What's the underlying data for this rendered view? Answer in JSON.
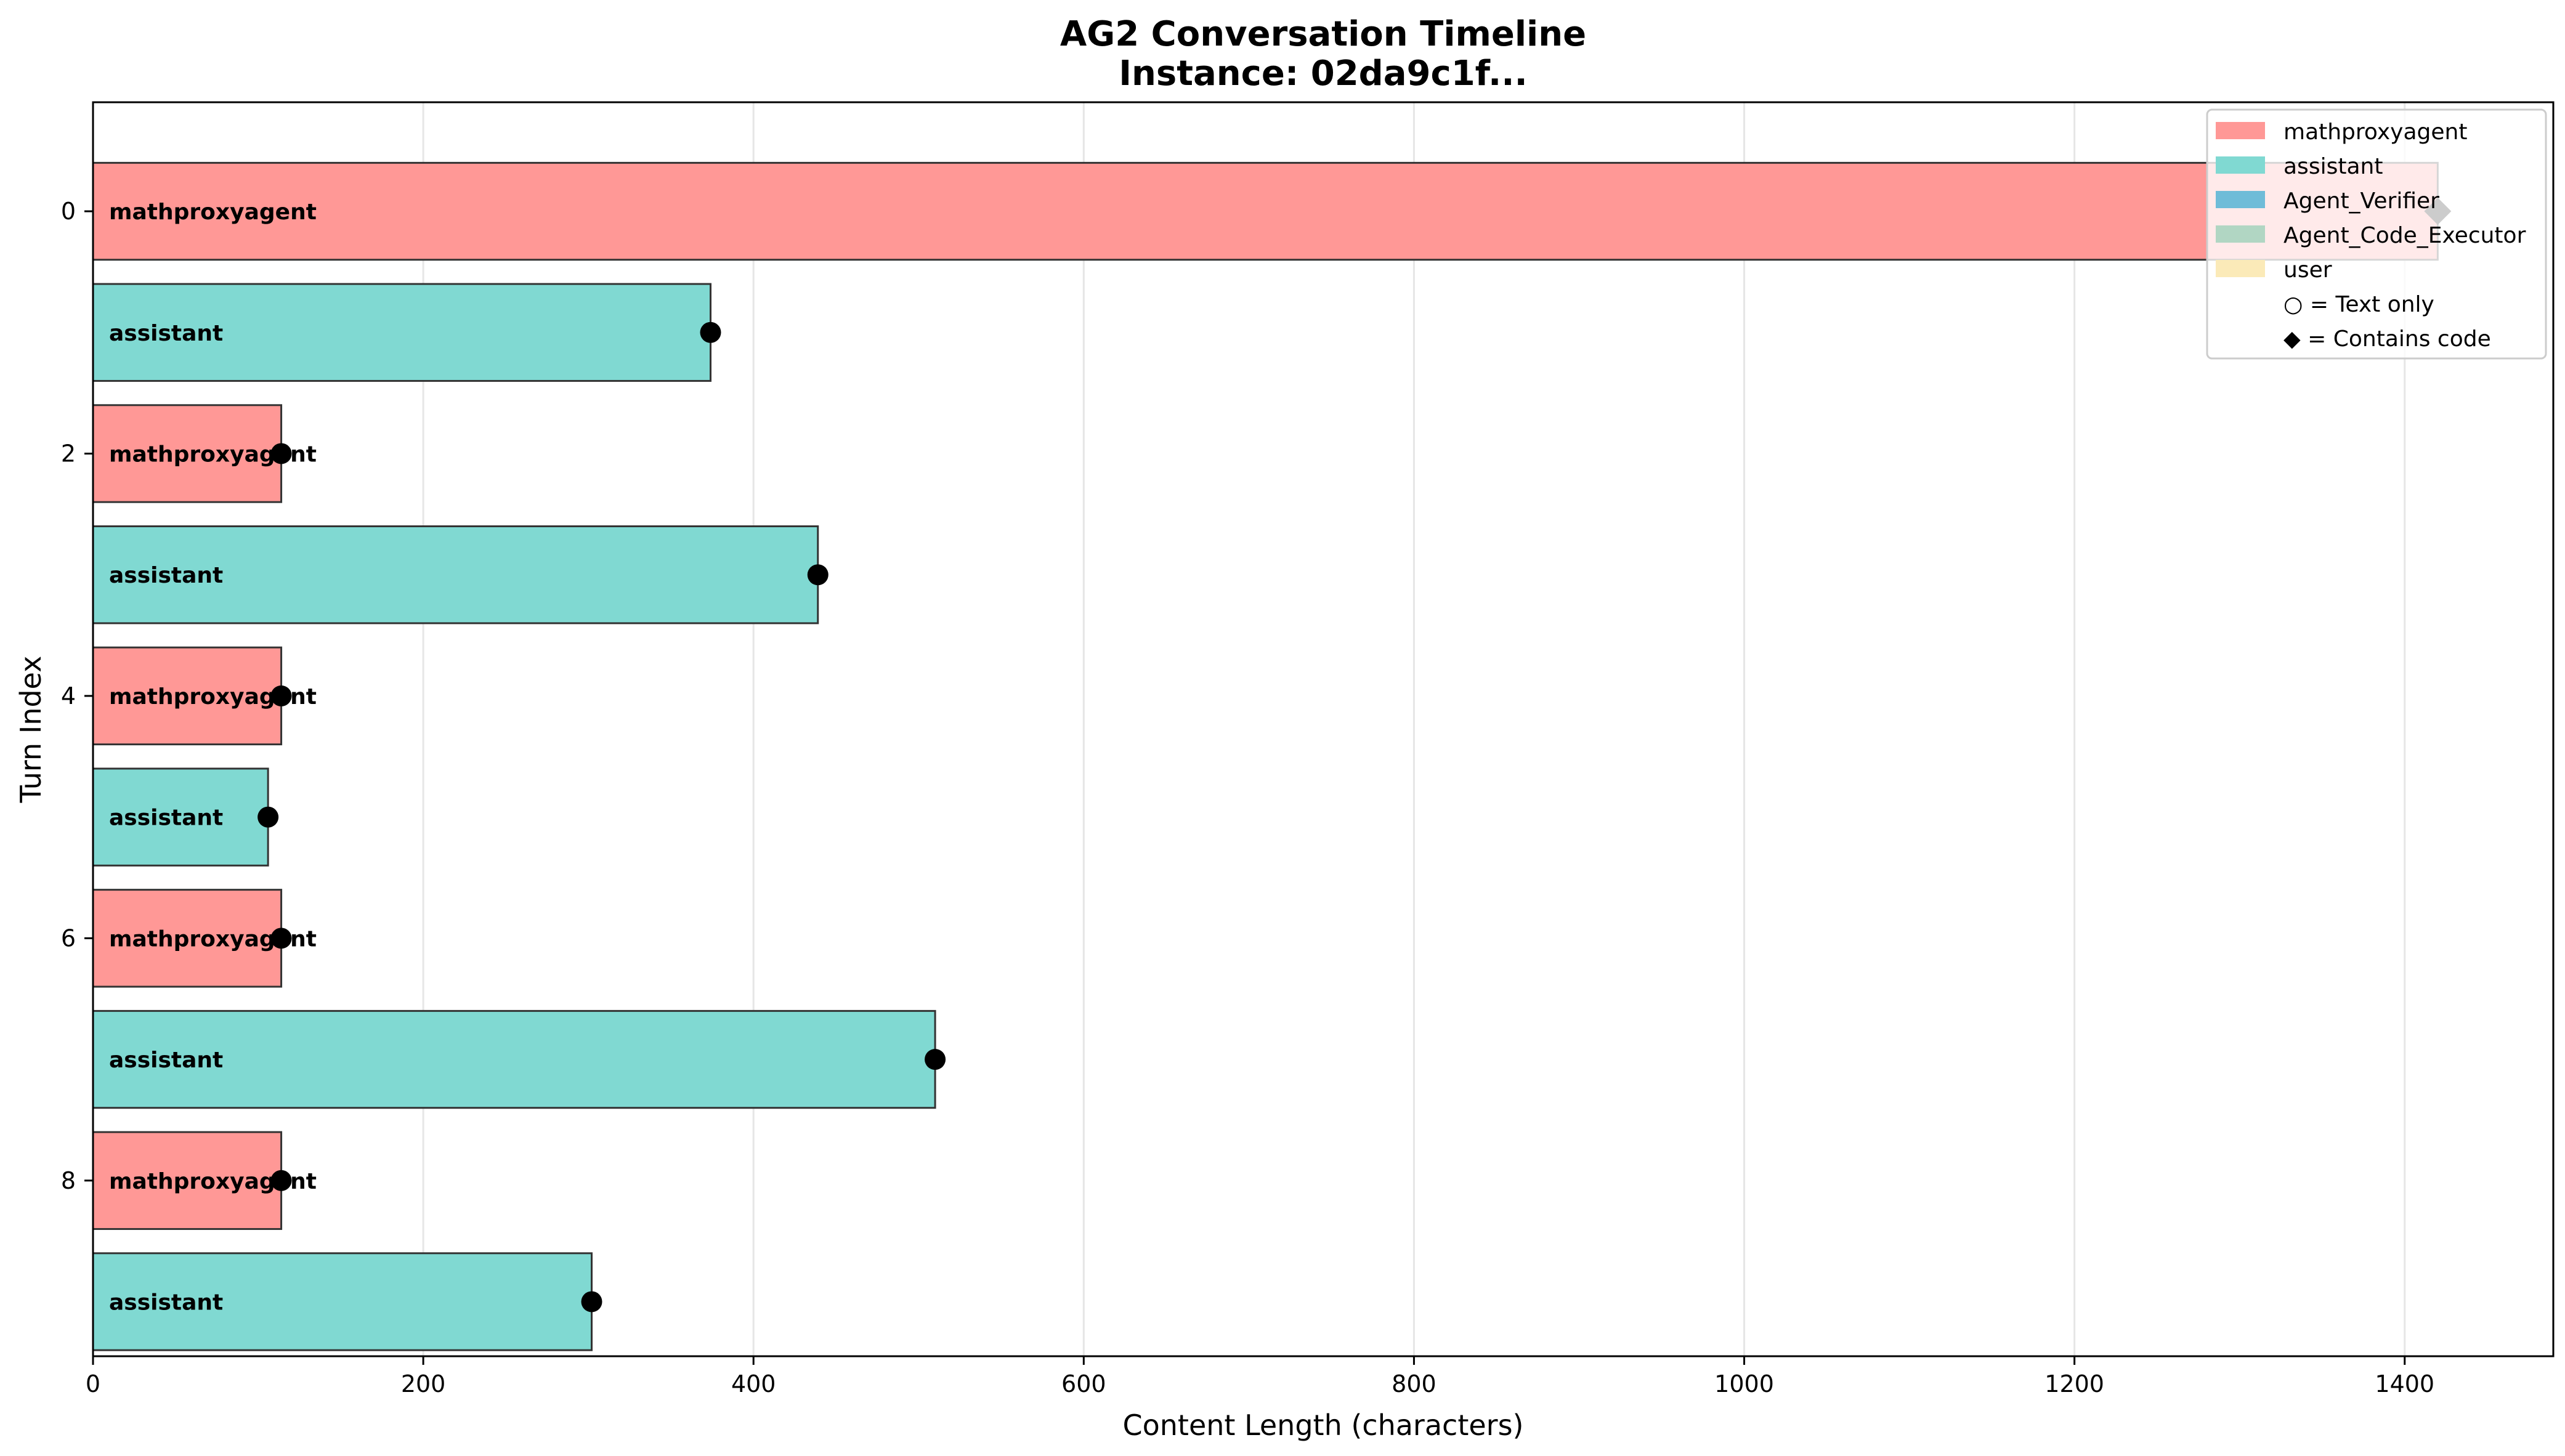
{
  "chart_data": {
    "type": "bar",
    "orientation": "horizontal",
    "title": "AG2 Conversation Timeline",
    "subtitle": "Instance: 02da9c1f...",
    "xlabel": "Content Length (characters)",
    "ylabel": "Turn Index",
    "xlim": [
      0,
      1490
    ],
    "ylim": [
      -0.9,
      9.45
    ],
    "x_ticks": [
      0,
      200,
      400,
      600,
      800,
      1000,
      1200,
      1400
    ],
    "y_ticks": [
      0,
      2,
      4,
      6,
      8
    ],
    "grid": "vertical",
    "legend_placement": "top-right",
    "colors": {
      "mathproxyagent": "#ff9896",
      "assistant": "#80d9d2",
      "Agent_Verifier": "#6fbcd8",
      "Agent_Code_Executor": "#b1d6c3",
      "user": "#fbeab8"
    },
    "turns": [
      {
        "turn": 0,
        "agent": "mathproxyagent",
        "value": 1420,
        "marker": "diamond"
      },
      {
        "turn": 1,
        "agent": "assistant",
        "value": 374,
        "marker": "circle"
      },
      {
        "turn": 2,
        "agent": "mathproxyagent",
        "value": 114,
        "marker": "circle"
      },
      {
        "turn": 3,
        "agent": "assistant",
        "value": 439,
        "marker": "circle"
      },
      {
        "turn": 4,
        "agent": "mathproxyagent",
        "value": 114,
        "marker": "circle"
      },
      {
        "turn": 5,
        "agent": "assistant",
        "value": 106,
        "marker": "circle"
      },
      {
        "turn": 6,
        "agent": "mathproxyagent",
        "value": 114,
        "marker": "circle"
      },
      {
        "turn": 7,
        "agent": "assistant",
        "value": 510,
        "marker": "circle"
      },
      {
        "turn": 8,
        "agent": "mathproxyagent",
        "value": 114,
        "marker": "circle"
      },
      {
        "turn": 9,
        "agent": "assistant",
        "value": 302,
        "marker": "circle"
      }
    ],
    "legend": {
      "entries": [
        "mathproxyagent",
        "assistant",
        "Agent_Verifier",
        "Agent_Code_Executor",
        "user"
      ],
      "notes": [
        "○ = Text only",
        "◆ = Contains code"
      ]
    }
  }
}
